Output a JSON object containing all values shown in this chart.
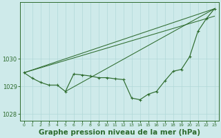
{
  "hours": [
    0,
    1,
    2,
    3,
    4,
    5,
    6,
    7,
    8,
    9,
    10,
    11,
    12,
    13,
    14,
    15,
    16,
    17,
    18,
    19,
    20,
    21,
    22,
    23
  ],
  "line_main": [
    1029.5,
    1029.3,
    1029.15,
    1029.05,
    1029.05,
    1028.82,
    1029.45,
    1029.42,
    1029.38,
    1029.32,
    1029.32,
    1029.28,
    1029.25,
    1028.58,
    1028.52,
    1028.72,
    1028.82,
    1029.2,
    1029.55,
    1029.62,
    1030.08,
    1031.0,
    1031.45,
    1031.82
  ],
  "trend_line1_x": [
    0,
    23
  ],
  "trend_line1_y": [
    1029.5,
    1031.82
  ],
  "trend_line2_x": [
    0,
    23
  ],
  "trend_line2_y": [
    1029.5,
    1031.55
  ],
  "trend_line3_x": [
    5,
    23
  ],
  "trend_line3_y": [
    1028.82,
    1031.82
  ],
  "ylim": [
    1027.75,
    1032.05
  ],
  "yticks": [
    1028,
    1029,
    1030
  ],
  "xlim": [
    -0.5,
    23.5
  ],
  "bg_color": "#ceeaea",
  "grid_color": "#b0d8d8",
  "line_color": "#2d6b2d",
  "title": "Graphe pression niveau de la mer (hPa)",
  "title_fontsize": 7.5,
  "ylabel_fontsize": 6,
  "xlabel_fontsize": 4.5
}
